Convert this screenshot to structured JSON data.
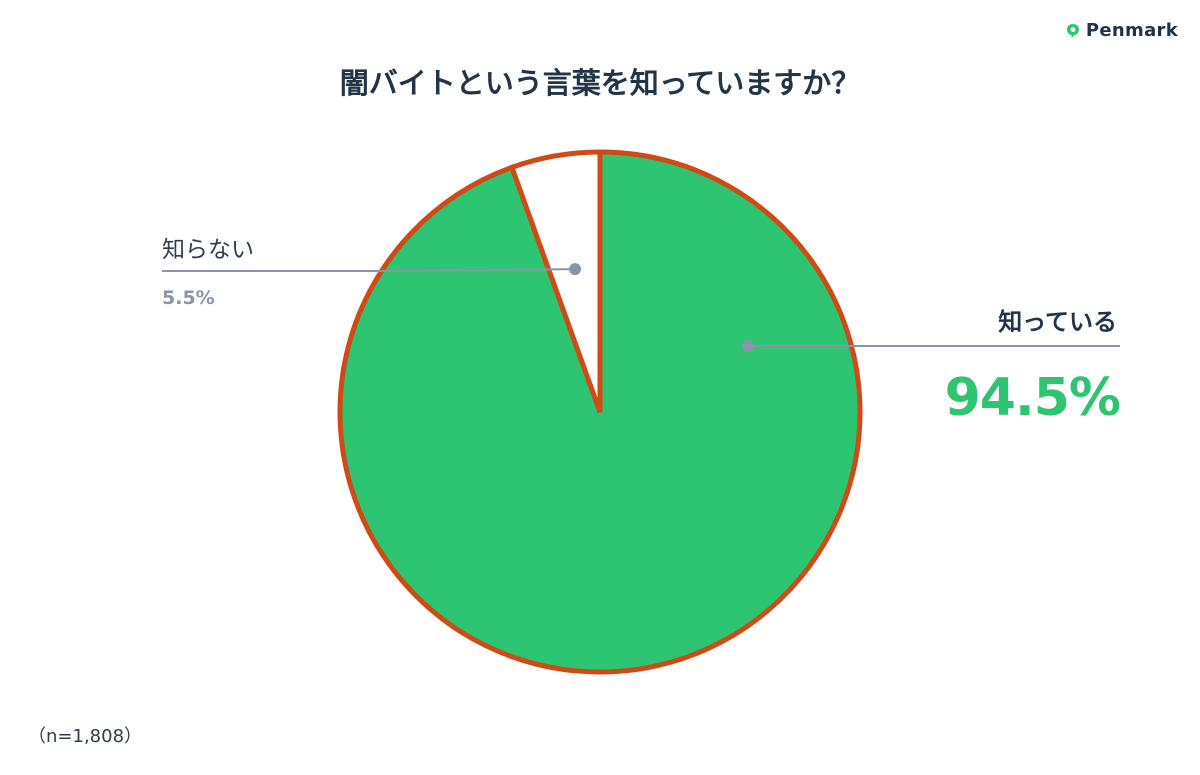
{
  "brand": {
    "name": "Penmark",
    "logo_icon": "penmark-logo-icon"
  },
  "chart_data": {
    "type": "pie",
    "title": "闇バイトという言葉を知っていますか？",
    "slices": [
      {
        "label": "知っている",
        "value": 94.5,
        "display": "94.5%",
        "color": "#2ec572"
      },
      {
        "label": "知らない",
        "value": 5.5,
        "display": "5.5%",
        "color": "#ffffff"
      }
    ],
    "border_color": "#cf4a16",
    "start_angle_deg": 0,
    "direction": "clockwise"
  },
  "note": "（n=1,808）"
}
